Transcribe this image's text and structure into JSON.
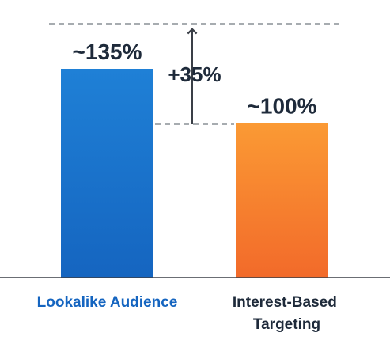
{
  "chart_data": {
    "type": "bar",
    "categories": [
      "Lookalike Audience",
      "Interest-Based Targeting"
    ],
    "values": [
      135,
      100
    ],
    "value_labels": [
      "~135%",
      "~100%"
    ],
    "difference_label": "+35%",
    "ylim": [
      0,
      150
    ],
    "grid": false,
    "colors": {
      "bar_1_top": "#1f80d6",
      "bar_1_bottom": "#1565c0",
      "bar_2_top": "#fb9a34",
      "bar_2_bottom": "#f26a2a",
      "category_1_text": "#1565c0",
      "category_2_text": "#1e2a3a",
      "axis": "#3a3f47",
      "guide": "#8a9096"
    }
  }
}
